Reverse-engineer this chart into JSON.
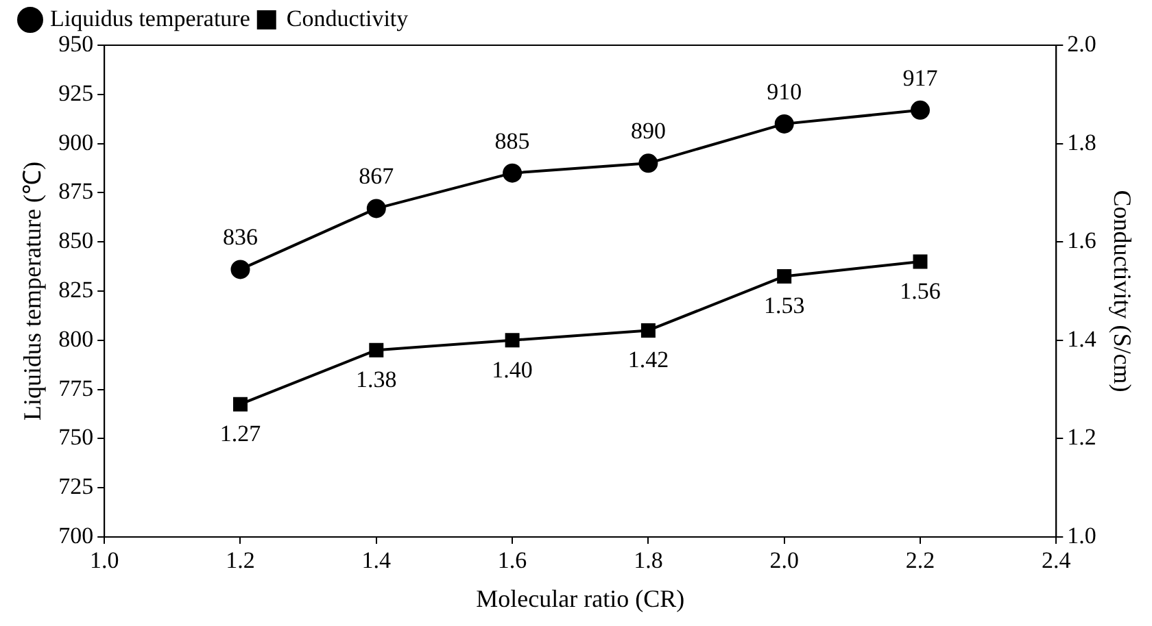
{
  "chart_data": {
    "type": "line",
    "xlabel": "Molecular ratio (CR)",
    "ylabel": "Liquidus temperature (℃)",
    "y2label": "Conductivity (S/cm)",
    "x": [
      1.2,
      1.4,
      1.6,
      1.8,
      2.0,
      2.2
    ],
    "series": [
      {
        "name": "Liquidus temperature",
        "color": "#000000",
        "marker": "circle",
        "values": [
          836,
          867,
          885,
          890,
          910,
          917
        ],
        "value_labels": [
          "836",
          "867",
          "885",
          "890",
          "910",
          "917"
        ]
      },
      {
        "name": "Conductivity",
        "color": "#000000",
        "marker": "square",
        "axis": "y2",
        "values": [
          1.27,
          1.38,
          1.4,
          1.42,
          1.53,
          1.56
        ],
        "value_labels": [
          "1.27",
          "1.38",
          "1.40",
          "1.42",
          "1.53",
          "1.56"
        ]
      }
    ],
    "xlim": [
      1.0,
      2.4
    ],
    "xticks": [
      {
        "value": 1.0,
        "label": "1.0"
      },
      1.2,
      1.4,
      1.6,
      1.8,
      {
        "value": 2.0,
        "label": "2.0"
      },
      2.2,
      2.4
    ],
    "ylim": [
      700,
      950
    ],
    "yticks": [
      700,
      725,
      750,
      775,
      800,
      825,
      850,
      875,
      900,
      925,
      950
    ],
    "y2lim": [
      1.0,
      2.0
    ],
    "y2ticks": [
      {
        "value": 1.0,
        "label": "1.0"
      },
      1.2,
      1.4,
      1.6,
      1.8,
      {
        "value": 2.0,
        "label": "2.0"
      }
    ],
    "grid": false,
    "legend": "top left",
    "line_style": "solid"
  }
}
